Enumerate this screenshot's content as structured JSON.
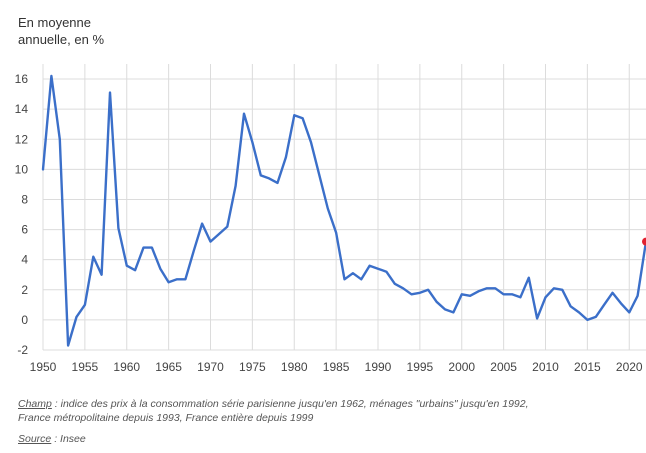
{
  "unit_label": {
    "line1": "En moyenne",
    "line2": "annuelle, en %"
  },
  "footnote": {
    "champ_label": "Champ",
    "champ_text": " : indice des prix à la consommation série parisienne jusqu'en 1962, ménages \"urbains\" jusqu'en 1992,",
    "line2": "France métropolitaine depuis 1993, France entière depuis 1999",
    "source_label": "Source",
    "source_text": " : Insee"
  },
  "colors": {
    "line": "#3b6fc9",
    "highlight": "#e1202f",
    "grid": "#dcdcdc",
    "tick": "#444444"
  },
  "chart_data": {
    "type": "line",
    "title": "",
    "xlabel": "",
    "ylabel": "En moyenne annuelle, en %",
    "xlim": [
      1950,
      2022
    ],
    "ylim": [
      -2,
      17
    ],
    "grid": true,
    "x_ticks": [
      1950,
      1955,
      1960,
      1965,
      1970,
      1975,
      1980,
      1985,
      1990,
      1995,
      2000,
      2005,
      2010,
      2015,
      2020
    ],
    "y_ticks": [
      -2,
      0,
      2,
      4,
      6,
      8,
      10,
      12,
      14,
      16
    ],
    "series": [
      {
        "x": [
          1950,
          1951,
          1952,
          1953,
          1954,
          1955,
          1956,
          1957,
          1958,
          1959,
          1960,
          1961,
          1962,
          1963,
          1964,
          1965,
          1966,
          1967,
          1968,
          1969,
          1970,
          1971,
          1972,
          1973,
          1974,
          1975,
          1976,
          1977,
          1978,
          1979,
          1980,
          1981,
          1982,
          1983,
          1984,
          1985,
          1986,
          1987,
          1988,
          1989,
          1990,
          1991,
          1992,
          1993,
          1994,
          1995,
          1996,
          1997,
          1998,
          1999,
          2000,
          2001,
          2002,
          2003,
          2004,
          2005,
          2006,
          2007,
          2008,
          2009,
          2010,
          2011,
          2012,
          2013,
          2014,
          2015,
          2016,
          2017,
          2018,
          2019,
          2020,
          2021,
          2022
        ],
        "values": [
          10.0,
          16.2,
          12.0,
          -1.7,
          0.2,
          1.0,
          4.2,
          3.0,
          15.1,
          6.1,
          3.6,
          3.3,
          4.8,
          4.8,
          3.4,
          2.5,
          2.7,
          2.7,
          4.6,
          6.4,
          5.2,
          5.7,
          6.2,
          8.9,
          13.7,
          11.8,
          9.6,
          9.4,
          9.1,
          10.8,
          13.6,
          13.4,
          11.8,
          9.6,
          7.4,
          5.8,
          2.7,
          3.1,
          2.7,
          3.6,
          3.4,
          3.2,
          2.4,
          2.1,
          1.7,
          1.8,
          2.0,
          1.2,
          0.7,
          0.5,
          1.7,
          1.6,
          1.9,
          2.1,
          2.1,
          1.7,
          1.7,
          1.5,
          2.8,
          0.1,
          1.5,
          2.1,
          2.0,
          0.9,
          0.5,
          0.0,
          0.2,
          1.0,
          1.8,
          1.1,
          0.5,
          1.6,
          5.2
        ],
        "highlight_last": true
      }
    ]
  }
}
